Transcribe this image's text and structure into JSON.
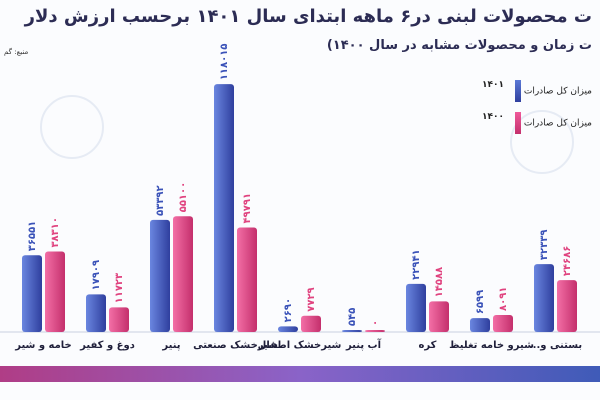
{
  "chart_data": {
    "type": "bar",
    "title": "ت محصولات لبنی در۶ ماهه ابتدای سال ۱۴۰۱ برحسب ارزش دلار",
    "subtitle": "ت زمان و محصولات مشابه در سال ۱۴۰۰)",
    "source": "منبع: گم",
    "categories": [
      "خامه و شیر",
      "دوغ و کفیر",
      "پنیر",
      "شیرخشک صنعتی",
      "شیرخشک اطفال",
      "آب پنیر",
      "کره",
      "شیرو خامه تغلیظ",
      "بستنی و..."
    ],
    "series": [
      {
        "name": "میزان کل صادرات",
        "year": "۱۴۰۱",
        "color": "#3a52b8",
        "values": [
          36551,
          17909,
          53392,
          118015,
          2690,
          545,
          22941,
          6599,
          32339
        ],
        "labels": [
          "۳۶۵۵۱",
          "۱۷۹۰۹",
          "۵۳۳۹۲",
          "۱۱۸۰۱۵",
          "۲۶۹۰",
          "۵۴۵",
          "۲۲۹۴۱",
          "۶۵۹۹",
          "۳۲۳۳۹"
        ]
      },
      {
        "name": "میزان کل صادرات",
        "year": "۱۴۰۰",
        "color": "#e0437f",
        "values": [
          38310,
          11723,
          55100,
          49791,
          7729,
          0,
          14588,
          8091,
          24686
        ],
        "labels": [
          "۳۸۳۱۰",
          "۱۱۷۲۳",
          "۵۵۱۰۰",
          "۴۹۷۹۱",
          "۷۷۲۹",
          "۰",
          "۱۴۵۸۸",
          "۸۰۹۱",
          "۲۴۶۸۶"
        ]
      }
    ],
    "ylim": [
      0,
      120000
    ],
    "legend_position": "top-right",
    "grid": false
  }
}
